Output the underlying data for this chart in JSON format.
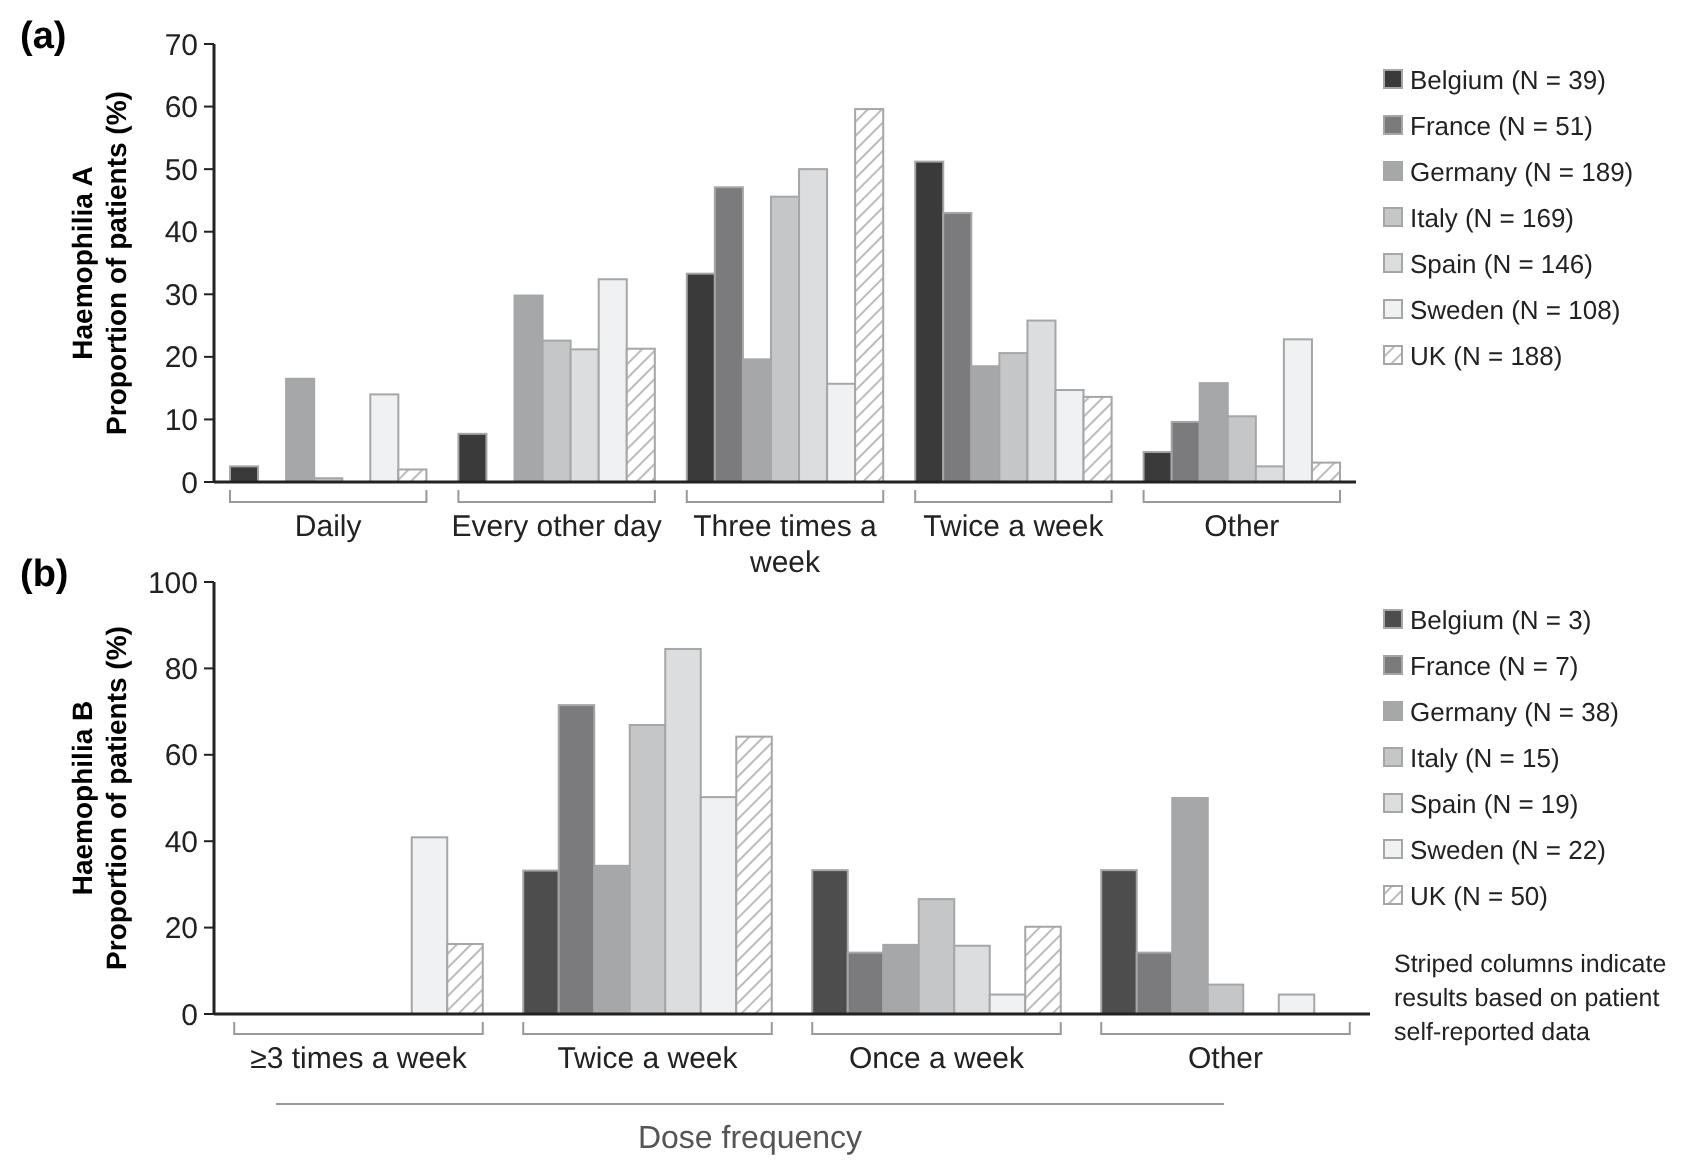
{
  "chart_data": [
    {
      "type": "bar",
      "title": "(a)",
      "ylabel": "Haemophilia A\nProportion of patients (%)",
      "categories": [
        "Daily",
        "Every other day",
        "Three times a week",
        "Twice a week",
        "Other"
      ],
      "ylim": [
        0,
        70
      ],
      "yticks": [
        0,
        10,
        20,
        30,
        40,
        50,
        60,
        70
      ],
      "legend": "right",
      "series": [
        {
          "name": "Belgium (N = 39)",
          "color": "#3a3a3a",
          "values": [
            2.5,
            7.7,
            33.3,
            51.2,
            4.8
          ]
        },
        {
          "name": "France (N = 51)",
          "color": "#7b7b7d",
          "values": [
            0,
            0,
            47.1,
            43.0,
            9.6
          ]
        },
        {
          "name": "Germany (N = 189)",
          "color": "#a6a7a9",
          "values": [
            16.5,
            29.8,
            19.6,
            18.5,
            15.8
          ]
        },
        {
          "name": "Italy (N = 169)",
          "color": "#c5c6c8",
          "values": [
            0.6,
            22.6,
            45.6,
            20.6,
            10.5
          ]
        },
        {
          "name": "Spain (N = 146)",
          "color": "#dcdddf",
          "values": [
            0,
            21.2,
            50.0,
            25.8,
            2.5
          ]
        },
        {
          "name": "Sweden (N = 108)",
          "color": "#f0f1f3",
          "values": [
            14.0,
            32.4,
            15.7,
            14.7,
            22.8
          ]
        },
        {
          "name": "UK (N = 188)",
          "color": "#b4b4b4",
          "values": [
            2.0,
            21.3,
            59.6,
            13.6,
            3.1
          ]
        }
      ]
    },
    {
      "type": "bar",
      "title": "(b)",
      "ylabel": "Haemophilia B\nProportion of patients (%)",
      "xlabel": "Dose frequency",
      "categories": [
        "≥3 times a week",
        "Twice a week",
        "Once a week",
        "Other"
      ],
      "ylim": [
        0,
        100
      ],
      "yticks": [
        0,
        20,
        40,
        60,
        80,
        100
      ],
      "legend": "right",
      "annotations": [
        "Striped columns indicate results based on patient self-reported data"
      ],
      "series": [
        {
          "name": "Belgium (N = 3)",
          "color": "#4d4d4d",
          "values": [
            0,
            33.2,
            33.3,
            33.3
          ]
        },
        {
          "name": "France (N = 7)",
          "color": "#7b7b7d",
          "values": [
            0,
            71.5,
            14.2,
            14.2
          ]
        },
        {
          "name": "Germany (N = 38)",
          "color": "#a6a7a9",
          "values": [
            0,
            34.3,
            16.0,
            50.0
          ]
        },
        {
          "name": "Italy (N = 15)",
          "color": "#c5c6c8",
          "values": [
            0,
            66.9,
            26.6,
            6.8
          ]
        },
        {
          "name": "Spain (N = 19)",
          "color": "#dcdddf",
          "values": [
            0,
            84.5,
            15.8,
            0
          ]
        },
        {
          "name": "Sweden (N = 22)",
          "color": "#f0f1f3",
          "values": [
            40.9,
            50.2,
            4.5,
            4.5
          ]
        },
        {
          "name": "UK (N = 50)",
          "color": "#b4b4b4",
          "values": [
            16.2,
            64.2,
            20.2,
            0
          ]
        }
      ]
    }
  ]
}
